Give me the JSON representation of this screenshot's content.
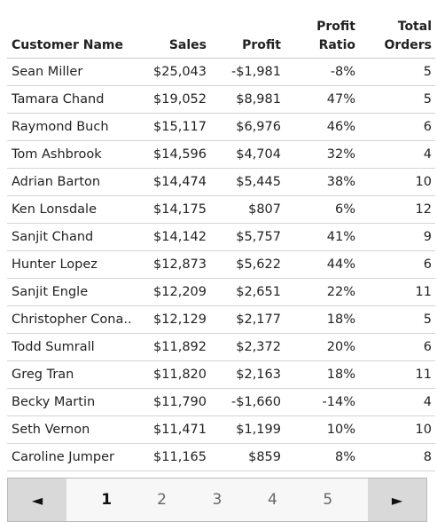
{
  "table": {
    "headers": {
      "name": "Customer Name",
      "sales": "Sales",
      "profit": "Profit",
      "ratio_line1": "Profit",
      "ratio_line2": "Ratio",
      "orders_line1": "Total",
      "orders_line2": "Orders"
    },
    "rows": [
      {
        "name": "Sean Miller",
        "sales": "$25,043",
        "profit": "-$1,981",
        "ratio": "-8%",
        "orders": "5"
      },
      {
        "name": "Tamara Chand",
        "sales": "$19,052",
        "profit": "$8,981",
        "ratio": "47%",
        "orders": "5"
      },
      {
        "name": "Raymond Buch",
        "sales": "$15,117",
        "profit": "$6,976",
        "ratio": "46%",
        "orders": "6"
      },
      {
        "name": "Tom Ashbrook",
        "sales": "$14,596",
        "profit": "$4,704",
        "ratio": "32%",
        "orders": "4"
      },
      {
        "name": "Adrian Barton",
        "sales": "$14,474",
        "profit": "$5,445",
        "ratio": "38%",
        "orders": "10"
      },
      {
        "name": "Ken Lonsdale",
        "sales": "$14,175",
        "profit": "$807",
        "ratio": "6%",
        "orders": "12"
      },
      {
        "name": "Sanjit Chand",
        "sales": "$14,142",
        "profit": "$5,757",
        "ratio": "41%",
        "orders": "9"
      },
      {
        "name": "Hunter Lopez",
        "sales": "$12,873",
        "profit": "$5,622",
        "ratio": "44%",
        "orders": "6"
      },
      {
        "name": "Sanjit Engle",
        "sales": "$12,209",
        "profit": "$2,651",
        "ratio": "22%",
        "orders": "11"
      },
      {
        "name": "Christopher Cona..",
        "sales": "$12,129",
        "profit": "$2,177",
        "ratio": "18%",
        "orders": "5"
      },
      {
        "name": "Todd Sumrall",
        "sales": "$11,892",
        "profit": "$2,372",
        "ratio": "20%",
        "orders": "6"
      },
      {
        "name": "Greg Tran",
        "sales": "$11,820",
        "profit": "$2,163",
        "ratio": "18%",
        "orders": "11"
      },
      {
        "name": "Becky Martin",
        "sales": "$11,790",
        "profit": "-$1,660",
        "ratio": "-14%",
        "orders": "4"
      },
      {
        "name": "Seth Vernon",
        "sales": "$11,471",
        "profit": "$1,199",
        "ratio": "10%",
        "orders": "10"
      },
      {
        "name": "Caroline Jumper",
        "sales": "$11,165",
        "profit": "$859",
        "ratio": "8%",
        "orders": "8"
      }
    ]
  },
  "pager": {
    "prev_icon": "◄",
    "next_icon": "►",
    "pages": [
      "1",
      "2",
      "3",
      "4",
      "5"
    ],
    "current": "1"
  }
}
